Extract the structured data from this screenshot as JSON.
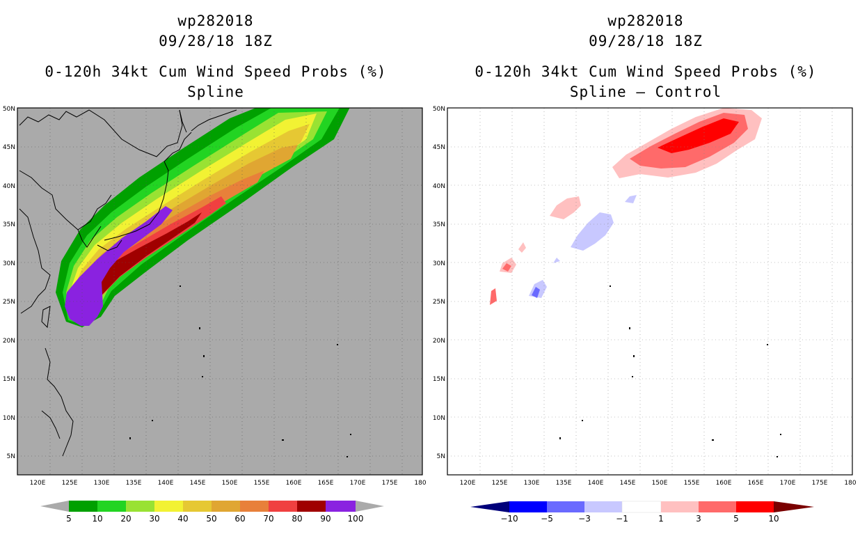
{
  "left": {
    "storm_id": "wp282018",
    "datetime": "09/28/18 18Z",
    "product": "0-120h 34kt Cum Wind Speed Probs (%)",
    "subtitle": "Spline",
    "colorbar": {
      "labels": [
        "5",
        "10",
        "20",
        "30",
        "40",
        "50",
        "60",
        "70",
        "80",
        "90",
        "100"
      ],
      "colors": [
        "#aaaaaa",
        "#00a000",
        "#22d422",
        "#99e233",
        "#f2f233",
        "#e6c833",
        "#e0a632",
        "#e8803a",
        "#f04040",
        "#a00000",
        "#8a22e0",
        "#aaaaaa"
      ]
    }
  },
  "right": {
    "storm_id": "wp282018",
    "datetime": "09/28/18 18Z",
    "product": "0-120h 34kt Cum Wind Speed Probs (%)",
    "subtitle": "Spline – Control",
    "colorbar": {
      "labels": [
        "−10",
        "−5",
        "−3",
        "−1",
        "1",
        "3",
        "5",
        "10"
      ],
      "colors": [
        "#00007a",
        "#0000ff",
        "#6a6aff",
        "#c8c8ff",
        "#ffffff",
        "#ffc0c0",
        "#ff6a6a",
        "#ff0000",
        "#7a0000"
      ]
    }
  },
  "map": {
    "lon_labels": [
      "120E",
      "125E",
      "130E",
      "135E",
      "140E",
      "145E",
      "150E",
      "155E",
      "160E",
      "165E",
      "170E",
      "175E",
      "180"
    ],
    "lat_labels": [
      "50N",
      "45N",
      "40N",
      "35N",
      "30N",
      "25N",
      "20N",
      "15N",
      "10N",
      "5N"
    ]
  }
}
